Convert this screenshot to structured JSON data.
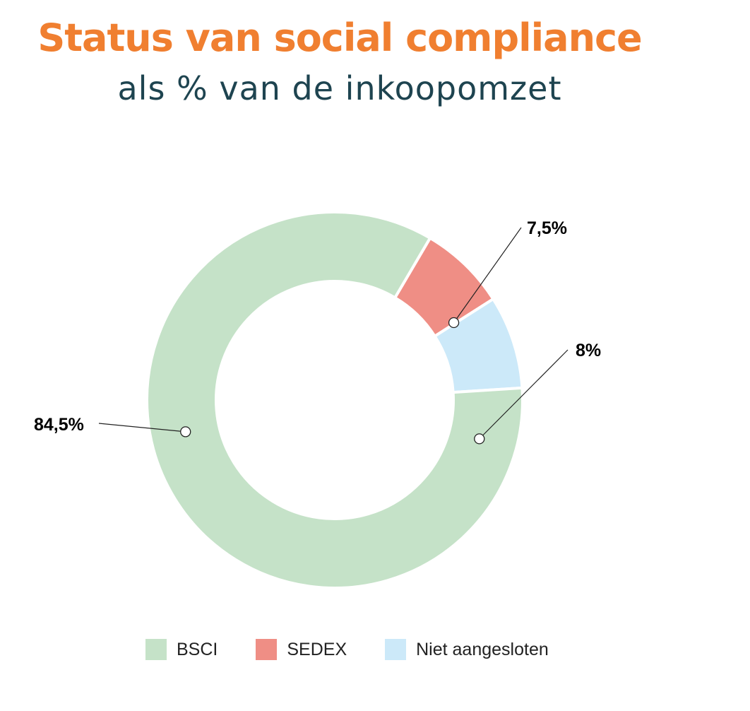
{
  "chart_data": {
    "type": "pie",
    "donut": true,
    "title": "Status van social compliance",
    "subtitle": "als % van de inkoopomzet",
    "categories": [
      "BSCI",
      "SEDEX",
      "Niet aangesloten"
    ],
    "values": [
      84.5,
      7.5,
      8
    ],
    "data_labels": [
      "84,5%",
      "7,5%",
      "8%"
    ],
    "colors": [
      "#c5e2c8",
      "#ef8e85",
      "#cce9f9"
    ],
    "legend_position": "bottom"
  }
}
